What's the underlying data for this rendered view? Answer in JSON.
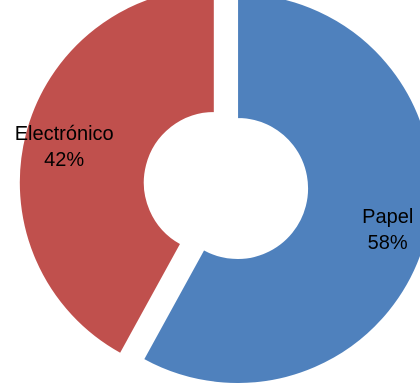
{
  "chart_data": {
    "type": "pie",
    "style": "donut",
    "title": "",
    "slices": [
      {
        "name": "Papel",
        "value": 58,
        "value_label": "58%",
        "color": "#4f81bd"
      },
      {
        "name": "Electrónico",
        "value": 42,
        "value_label": "42%",
        "color": "#c0504d"
      }
    ],
    "legend": "none"
  }
}
